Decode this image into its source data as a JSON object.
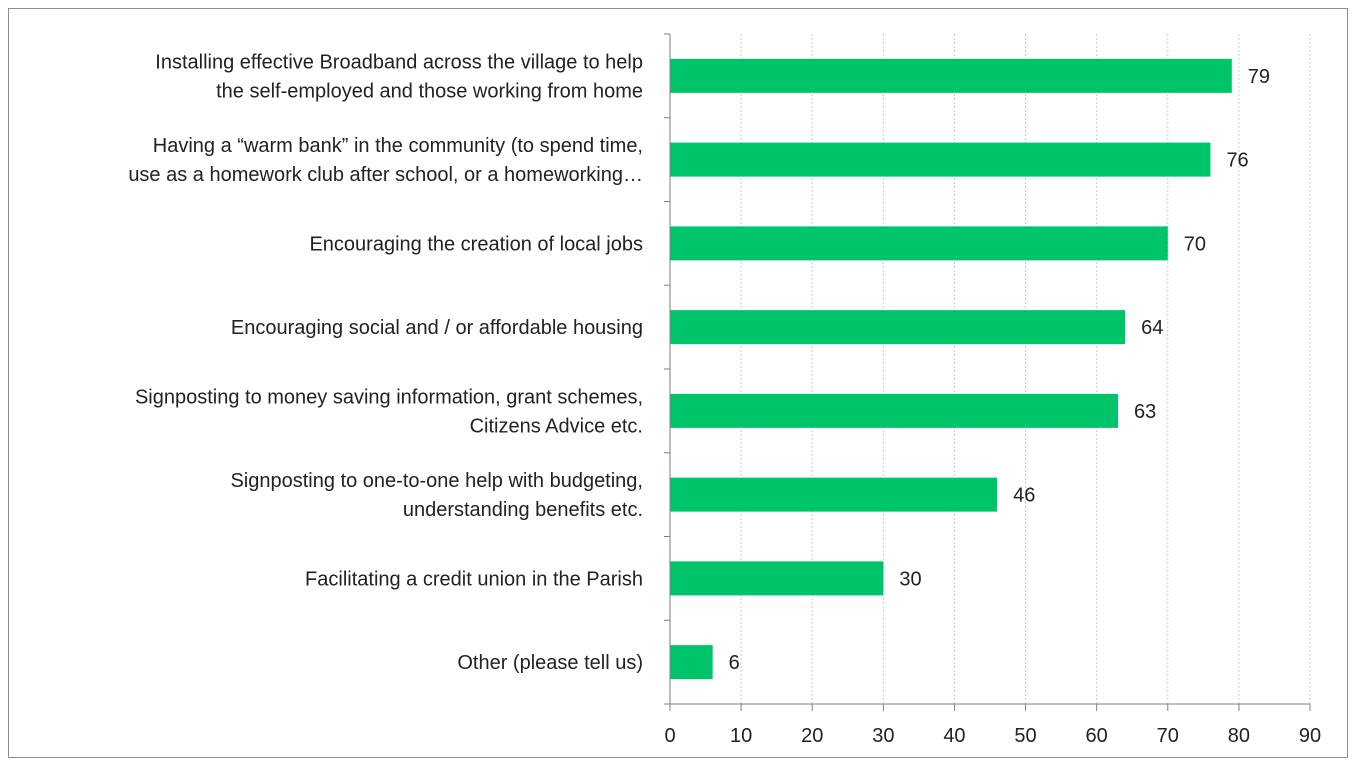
{
  "chart_data": {
    "type": "bar",
    "orientation": "horizontal",
    "categories": [
      [
        "Installing effective Broadband across the village to help",
        "the self-employed and those working from home"
      ],
      [
        "Having a “warm bank” in the community (to spend time,",
        "use as a homework club after school, or a homeworking…"
      ],
      [
        "Encouraging the creation of local jobs"
      ],
      [
        "Encouraging social and / or affordable housing"
      ],
      [
        "Signposting to money saving information, grant schemes,",
        "Citizens Advice etc."
      ],
      [
        "Signposting to one-to-one help with budgeting,",
        "understanding benefits etc."
      ],
      [
        "Facilitating a credit union in the Parish"
      ],
      [
        "Other (please tell us)"
      ]
    ],
    "values": [
      79,
      76,
      70,
      64,
      63,
      46,
      30,
      6
    ],
    "xlim": [
      0,
      90
    ],
    "ticks": [
      "0",
      "10",
      "20",
      "30",
      "40",
      "50",
      "60",
      "70",
      "80",
      "90"
    ],
    "grid": "vertical dashed",
    "legend": "none",
    "title": "",
    "xlabel": "",
    "ylabel": "",
    "colors": {
      "bar": "#00c46a",
      "grid": "#c8c8c8",
      "axis": "#7f7f7f"
    }
  }
}
